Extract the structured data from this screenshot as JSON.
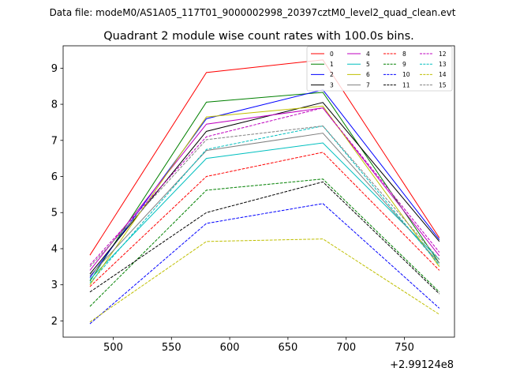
{
  "figure": {
    "suptitle": "Data file: modeM0/AS1A05_117T01_9000002998_20397cztM0_level2_quad_clean.evt"
  },
  "chart_data": {
    "type": "line",
    "title": "Quadrant 2 module wise count rates with 100.0s bins.",
    "xlabel": "",
    "ylabel": "",
    "x_offset_label": "+2.99124e8",
    "x": [
      480,
      580,
      680,
      780
    ],
    "xlim": [
      457,
      793
    ],
    "ylim": [
      1.55,
      9.62
    ],
    "xticks": [
      500,
      550,
      600,
      650,
      700,
      750
    ],
    "yticks": [
      2,
      3,
      4,
      5,
      6,
      7,
      8,
      9
    ],
    "grid": false,
    "legend": {
      "placement": "top-right",
      "columns": 4
    },
    "series": [
      {
        "name": "0",
        "color": "#ff0000",
        "dash": "solid",
        "values": [
          3.82,
          8.88,
          9.23,
          4.3
        ]
      },
      {
        "name": "1",
        "color": "#008000",
        "dash": "solid",
        "values": [
          3.1,
          8.06,
          8.33,
          3.6
        ]
      },
      {
        "name": "2",
        "color": "#0000ff",
        "dash": "solid",
        "values": [
          3.2,
          7.6,
          8.4,
          4.25
        ]
      },
      {
        "name": "3",
        "color": "#000000",
        "dash": "solid",
        "values": [
          3.3,
          7.25,
          8.05,
          4.2
        ]
      },
      {
        "name": "4",
        "color": "#bf00bf",
        "dash": "solid",
        "values": [
          3.4,
          7.45,
          7.9,
          3.8
        ]
      },
      {
        "name": "5",
        "color": "#00bfbf",
        "dash": "solid",
        "values": [
          3.15,
          6.5,
          6.93,
          3.7
        ]
      },
      {
        "name": "6",
        "color": "#bfbf00",
        "dash": "solid",
        "values": [
          3.0,
          7.65,
          7.95,
          3.5
        ]
      },
      {
        "name": "7",
        "color": "#808080",
        "dash": "solid",
        "values": [
          3.25,
          6.72,
          7.2,
          3.6
        ]
      },
      {
        "name": "8",
        "color": "#ff0000",
        "dash": "dashed",
        "values": [
          2.95,
          6.0,
          6.67,
          3.4
        ]
      },
      {
        "name": "9",
        "color": "#008000",
        "dash": "dashed",
        "values": [
          2.4,
          5.62,
          5.93,
          2.8
        ]
      },
      {
        "name": "10",
        "color": "#0000ff",
        "dash": "dashed",
        "values": [
          1.92,
          4.7,
          5.25,
          2.35
        ]
      },
      {
        "name": "11",
        "color": "#000000",
        "dash": "dashed",
        "values": [
          2.8,
          5.0,
          5.85,
          2.75
        ]
      },
      {
        "name": "12",
        "color": "#bf00bf",
        "dash": "dashed",
        "values": [
          3.55,
          7.1,
          7.9,
          3.9
        ]
      },
      {
        "name": "13",
        "color": "#00bfbf",
        "dash": "dashed",
        "values": [
          3.05,
          6.75,
          7.4,
          3.55
        ]
      },
      {
        "name": "14",
        "color": "#bfbf00",
        "dash": "dashed",
        "values": [
          1.97,
          4.2,
          4.27,
          2.18
        ]
      },
      {
        "name": "15",
        "color": "#808080",
        "dash": "dashed",
        "values": [
          3.5,
          7.02,
          7.4,
          3.7
        ]
      }
    ]
  }
}
